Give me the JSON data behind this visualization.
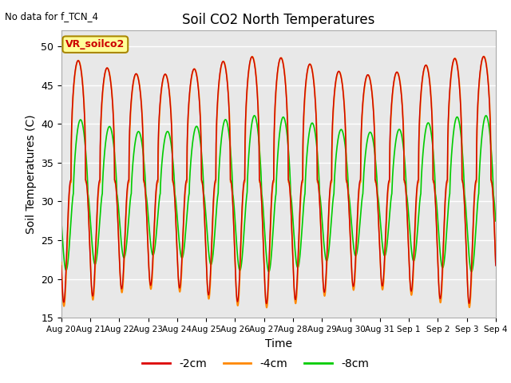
{
  "title": "Soil CO2 North Temperatures",
  "no_data_text": "No data for f_TCN_4",
  "xlabel": "Time",
  "ylabel": "Soil Temperatures (C)",
  "ylim": [
    15,
    52
  ],
  "yticks": [
    15,
    20,
    25,
    30,
    35,
    40,
    45,
    50
  ],
  "x_tick_labels": [
    "Aug 20",
    "Aug 21",
    "Aug 22",
    "Aug 23",
    "Aug 24",
    "Aug 25",
    "Aug 26",
    "Aug 27",
    "Aug 28",
    "Aug 29",
    "Aug 30",
    "Aug 31",
    "Sep 1",
    "Sep 2",
    "Sep 3",
    "Sep 4"
  ],
  "legend_labels": [
    "-2cm",
    "-4cm",
    "-8cm"
  ],
  "legend_colors": [
    "#dd0000",
    "#ff8800",
    "#00cc00"
  ],
  "line_colors": {
    "2cm": "#cc0000",
    "4cm": "#ff8800",
    "8cm": "#00cc00"
  },
  "annotation_box": {
    "text": "VR_soilco2",
    "facecolor": "#ffff99",
    "edgecolor": "#aa8800",
    "textcolor": "#cc0000",
    "fontsize": 9,
    "fontweight": "bold"
  },
  "plot_bg_color": "#e8e8e8",
  "days": 15,
  "points_per_day": 200
}
